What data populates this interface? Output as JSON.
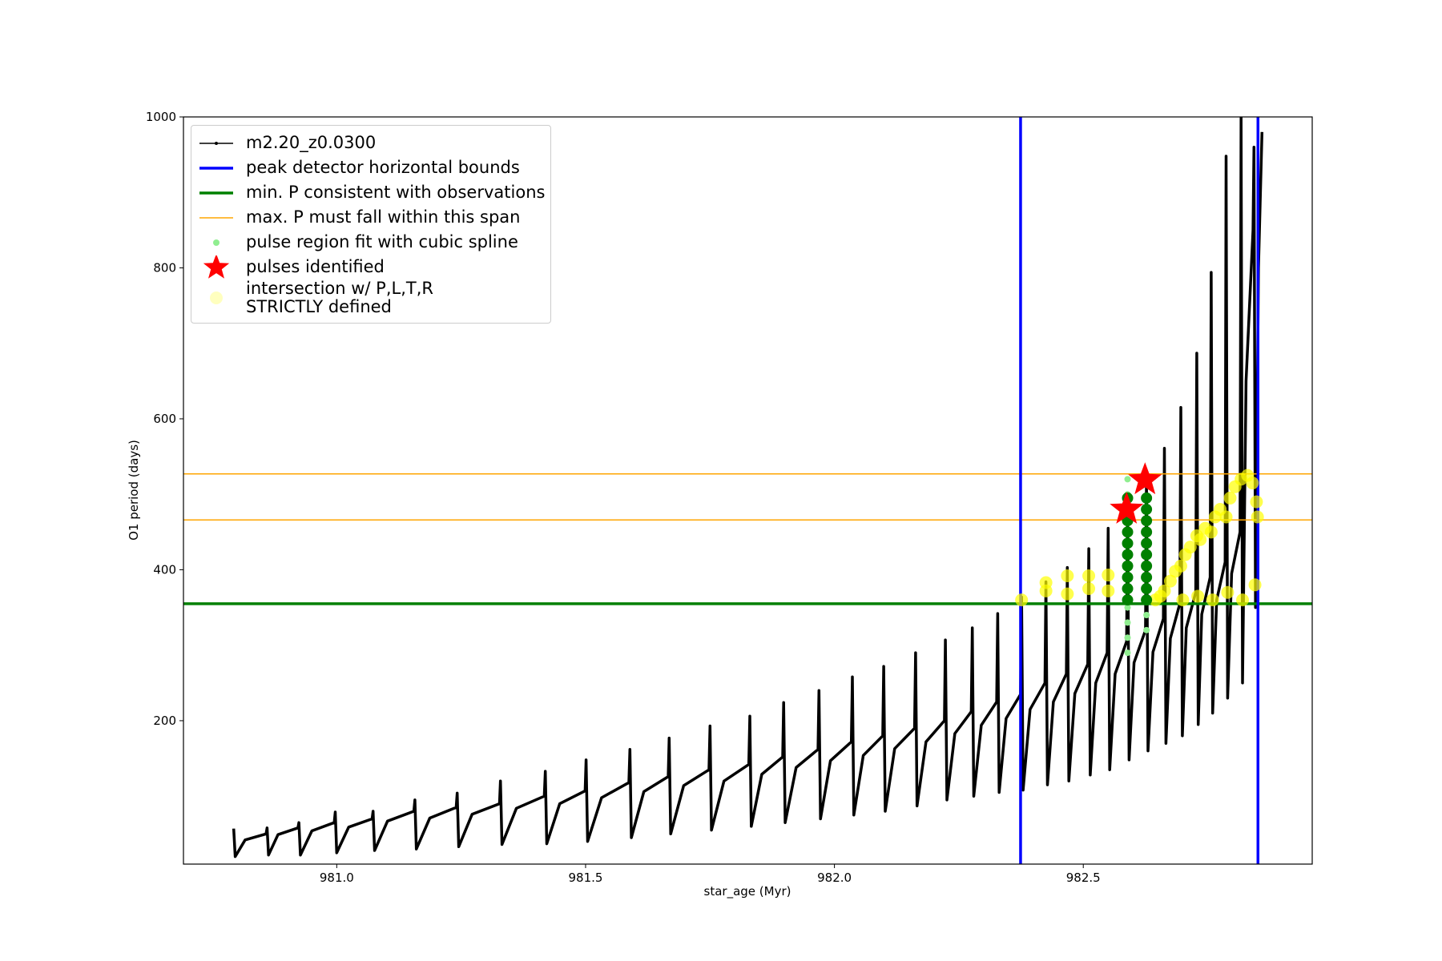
{
  "chart_data": {
    "type": "line",
    "xlabel": "star_age (Myr)",
    "ylabel": "O1 period (days)",
    "xlim": [
      980.692,
      982.96
    ],
    "ylim": [
      10,
      1000
    ],
    "xticks": [
      {
        "value": 981,
        "label": "981.0"
      },
      981.5,
      {
        "value": 982,
        "label": "982.0"
      },
      982.5
    ],
    "yticks": [
      200,
      400,
      600,
      800,
      1000
    ],
    "series": [
      {
        "name": "m2.20_z0.0300",
        "color": "#000000",
        "x": [
          980.793,
          980.796,
          980.816,
          980.858,
          980.86,
          980.863,
          980.882,
          980.922,
          980.924,
          980.927,
          980.95,
          980.995,
          980.997,
          981.0,
          981.024,
          981.071,
          981.073,
          981.076,
          981.102,
          981.155,
          981.157,
          981.16,
          981.187,
          981.24,
          981.242,
          981.245,
          981.272,
          981.327,
          981.329,
          981.332,
          981.361,
          981.417,
          981.419,
          981.422,
          981.448,
          981.499,
          981.501,
          981.504,
          981.532,
          981.587,
          981.589,
          981.592,
          981.617,
          981.666,
          981.668,
          981.671,
          981.697,
          981.748,
          981.75,
          981.753,
          981.778,
          981.828,
          981.83,
          981.833,
          981.854,
          981.896,
          981.898,
          981.901,
          981.923,
          981.967,
          981.969,
          981.972,
          981.992,
          982.034,
          982.036,
          982.039,
          982.058,
          982.097,
          982.099,
          982.102,
          982.121,
          982.161,
          982.163,
          982.166,
          982.184,
          982.221,
          982.223,
          982.226,
          982.242,
          982.275,
          982.277,
          982.28,
          982.295,
          982.326,
          982.328,
          982.331,
          982.345,
          982.374,
          982.376,
          982.379,
          982.393,
          982.423,
          982.425,
          982.428,
          982.44,
          982.466,
          982.468,
          982.471,
          982.483,
          982.509,
          982.511,
          982.514,
          982.525,
          982.548,
          982.55,
          982.553,
          982.564,
          982.587,
          982.589,
          982.592,
          982.602,
          982.625,
          982.627,
          982.63,
          982.64,
          982.661,
          982.663,
          982.666,
          982.675,
          982.694,
          982.696,
          982.699,
          982.707,
          982.726,
          982.728,
          982.731,
          982.738,
          982.755,
          982.757,
          982.76,
          982.768,
          982.785,
          982.787,
          982.79,
          982.798,
          982.815,
          982.817,
          982.82,
          982.827,
          982.841,
          982.843,
          982.846,
          982.852,
          982.859
        ],
        "y": [
          57,
          20,
          42,
          50,
          58,
          22,
          49,
          58,
          65,
          22,
          54,
          65,
          79,
          25,
          59,
          70,
          80,
          28,
          67,
          80,
          95,
          30,
          71,
          85,
          104,
          33,
          76,
          90,
          120,
          36,
          84,
          100,
          133,
          37,
          90,
          107,
          148,
          40,
          98,
          118,
          162,
          45,
          106,
          126,
          177,
          50,
          114,
          135,
          193,
          55,
          120,
          142,
          206,
          60,
          129,
          152,
          224,
          65,
          138,
          162,
          240,
          70,
          147,
          172,
          258,
          75,
          154,
          180,
          272,
          80,
          163,
          190,
          290,
          87,
          172,
          200,
          307,
          95,
          183,
          212,
          323,
          100,
          194,
          225,
          342,
          105,
          203,
          235,
          364,
          108,
          215,
          250,
          384,
          115,
          225,
          262,
          403,
          120,
          236,
          275,
          428,
          128,
          250,
          290,
          455,
          135,
          262,
          305,
          485,
          148,
          277,
          320,
          520,
          160,
          291,
          335,
          561,
          170,
          309,
          355,
          615,
          180,
          323,
          370,
          687,
          195,
          341,
          390,
          794,
          210,
          360,
          410,
          948,
          230,
          395,
          450,
          1000,
          250,
          650,
          850,
          960,
          350,
          800,
          980
        ]
      }
    ],
    "vlines": [
      {
        "name": "peak detector horizontal bounds",
        "color": "#0000ff",
        "x": 982.374
      },
      {
        "color": "#0000ff",
        "x": 982.851
      }
    ],
    "hlines": [
      {
        "name": "min. P consistent with observations",
        "color": "#008000",
        "y": 355,
        "width": 3.5
      },
      {
        "name": "max. P must fall within this span",
        "color": "#ffa500",
        "y": 527,
        "width": 1.5
      },
      {
        "color": "#ffa500",
        "y": 466,
        "width": 1.5
      }
    ],
    "points": [
      {
        "name": "pulse region fit with cubic spline",
        "color": "#90ee90",
        "marker": "o",
        "size": 4,
        "x": [
          982.589,
          982.589,
          982.589,
          982.589,
          982.589,
          982.589,
          982.627,
          982.627,
          982.627
        ],
        "y": [
          290,
          310,
          330,
          350,
          500,
          520,
          320,
          340,
          480
        ]
      },
      {
        "color": "#008000",
        "marker": "o",
        "size": 7,
        "x": [
          982.589,
          982.589,
          982.589,
          982.589,
          982.589,
          982.589,
          982.589,
          982.589,
          982.589,
          982.589,
          982.627,
          982.627,
          982.627,
          982.627,
          982.627,
          982.627,
          982.627,
          982.627,
          982.627,
          982.627
        ],
        "y": [
          360,
          375,
          390,
          405,
          420,
          435,
          450,
          465,
          480,
          495,
          360,
          375,
          390,
          405,
          420,
          435,
          450,
          465,
          480,
          495
        ]
      },
      {
        "name": "pulses identified",
        "color": "#ff0000",
        "marker": "*",
        "size": 22,
        "x": [
          982.587,
          982.624
        ],
        "y": [
          480,
          519
        ]
      },
      {
        "name": "intersection w/ P,L,T,R\nSTRICTLY defined",
        "color": "#ffff00",
        "marker": "o",
        "size": 8,
        "alpha": 0.7,
        "x": [
          982.376,
          982.425,
          982.425,
          982.468,
          982.468,
          982.511,
          982.511,
          982.55,
          982.55,
          982.645,
          982.655,
          982.663,
          982.675,
          982.685,
          982.696,
          982.705,
          982.715,
          982.728,
          982.735,
          982.745,
          982.757,
          982.765,
          982.775,
          982.787,
          982.795,
          982.805,
          982.817,
          982.83,
          982.84,
          982.848,
          982.85,
          982.7,
          982.73,
          982.76,
          982.79,
          982.82,
          982.845
        ],
        "y": [
          360,
          372,
          383,
          368,
          392,
          375,
          392,
          372,
          393,
          360,
          365,
          372,
          385,
          398,
          405,
          420,
          430,
          445,
          440,
          455,
          450,
          470,
          480,
          470,
          495,
          510,
          520,
          525,
          515,
          490,
          470,
          360,
          365,
          360,
          370,
          360,
          380
        ]
      }
    ]
  }
}
